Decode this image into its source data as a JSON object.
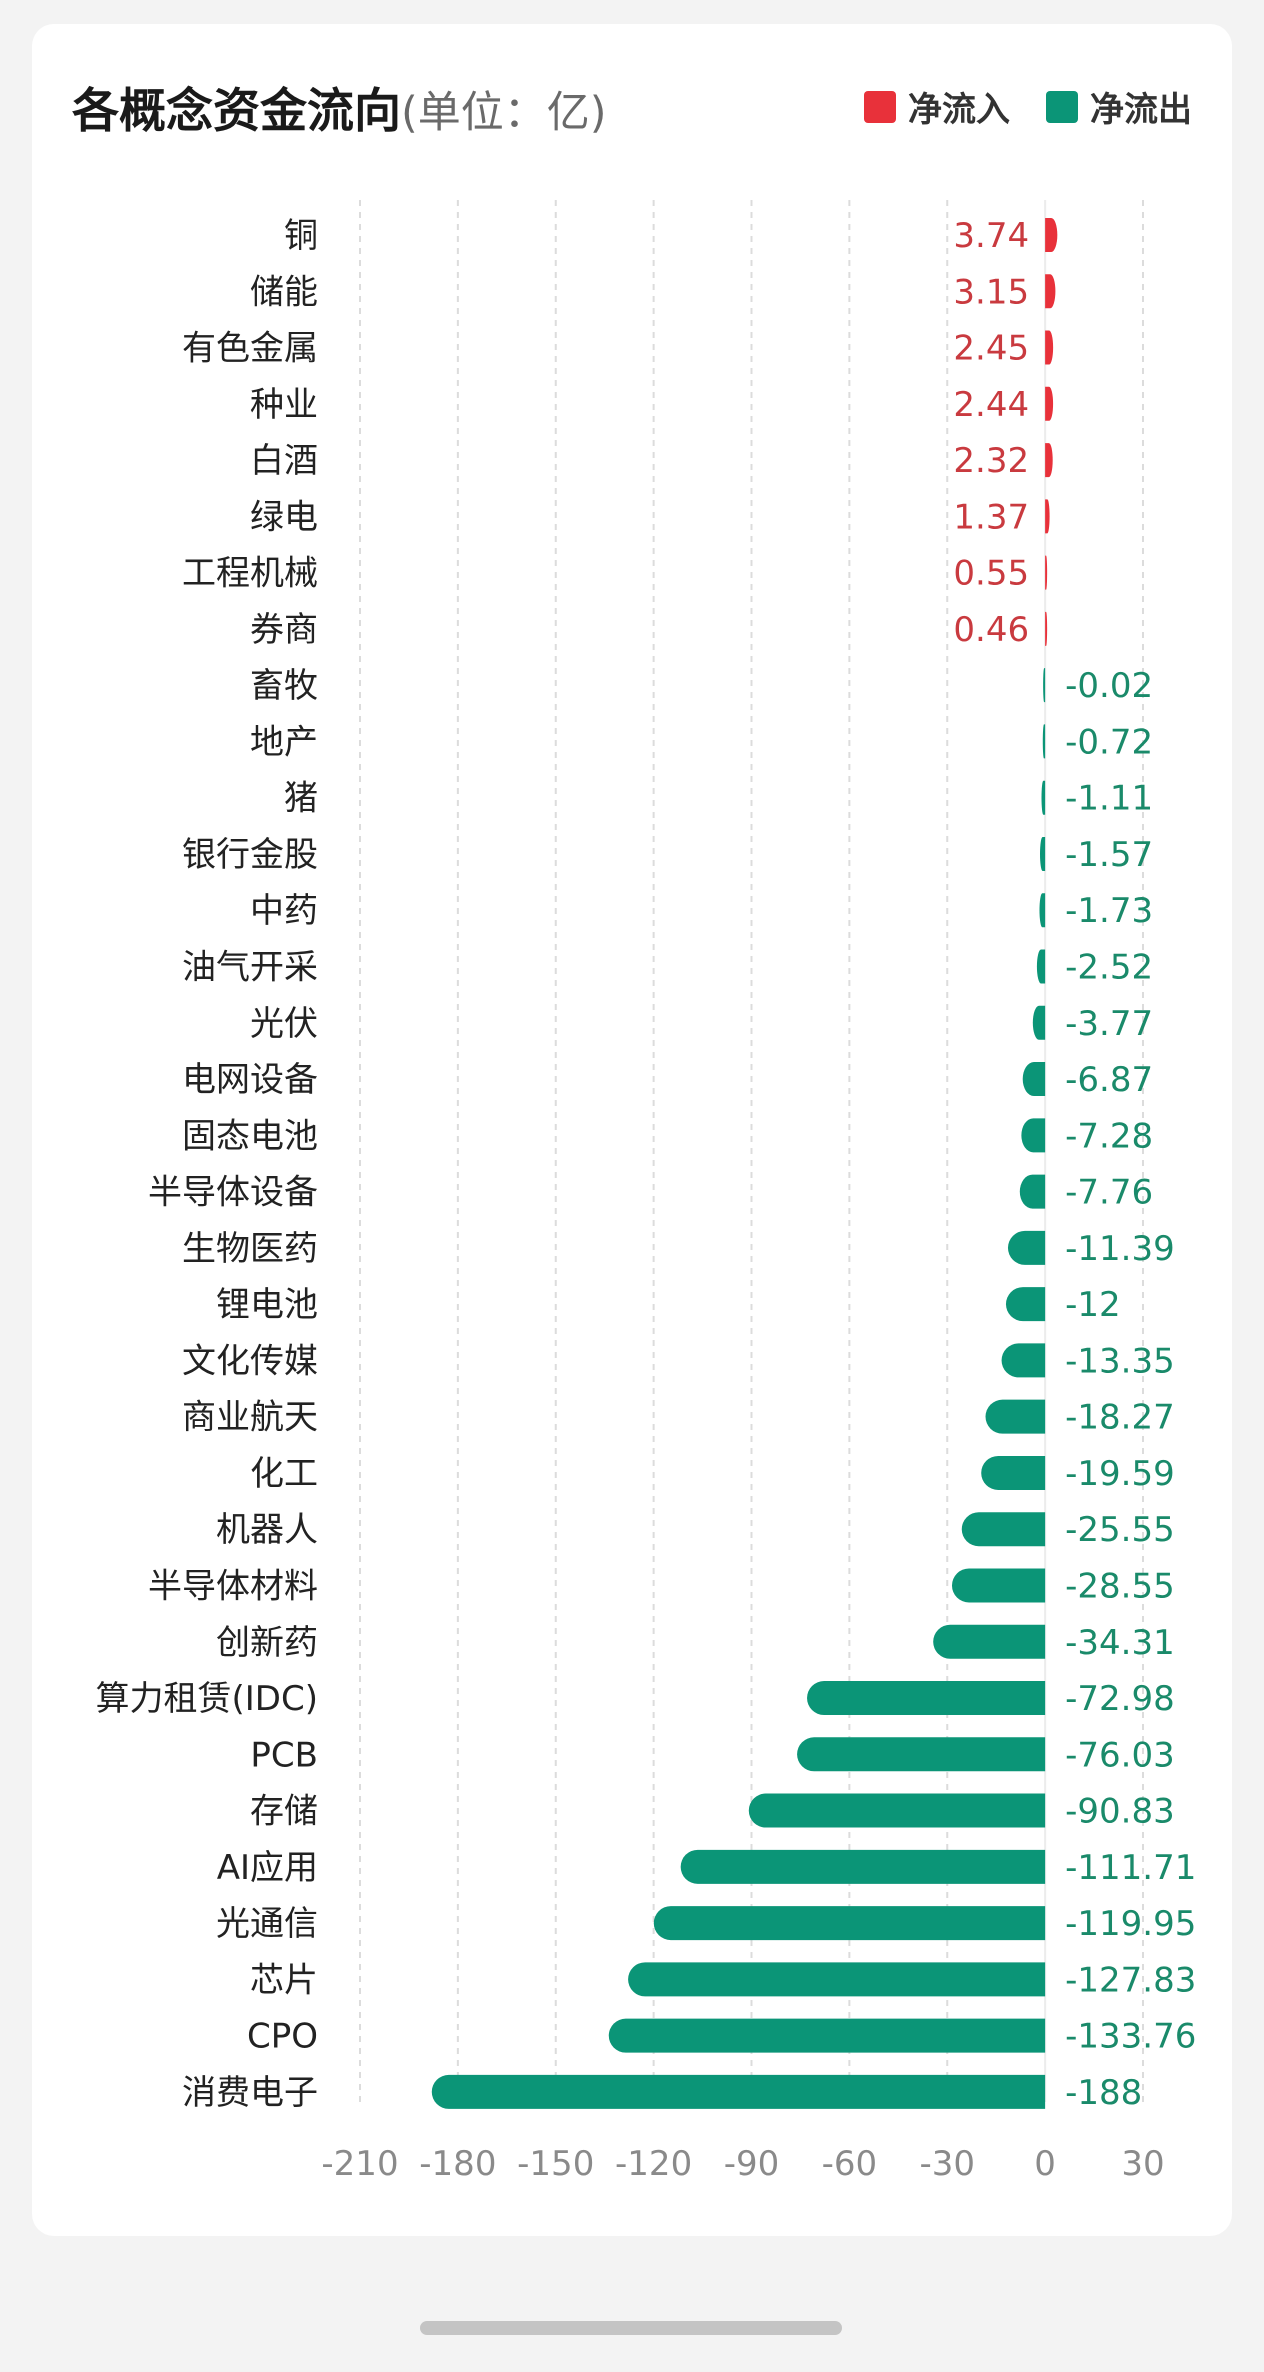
{
  "header": {
    "title": "各概念资金流向",
    "subtitle": "(单位：亿)",
    "legend": [
      {
        "label": "净流入",
        "color": "#e8313a"
      },
      {
        "label": "净流出",
        "color": "#0b9577"
      }
    ]
  },
  "chart_data": {
    "type": "bar",
    "orientation": "horizontal",
    "title": "各概念资金流向(单位：亿)",
    "categories": [
      "铜",
      "储能",
      "有色金属",
      "种业",
      "白酒",
      "绿电",
      "工程机械",
      "券商",
      "畜牧",
      "地产",
      "猪",
      "银行金股",
      "中药",
      "油气开采",
      "光伏",
      "电网设备",
      "固态电池",
      "半导体设备",
      "生物医药",
      "锂电池",
      "文化传媒",
      "商业航天",
      "化工",
      "机器人",
      "半导体材料",
      "创新药",
      "算力租赁(IDC)",
      "PCB",
      "存储",
      "AI应用",
      "光通信",
      "芯片",
      "CPO",
      "消费电子"
    ],
    "values": [
      3.74,
      3.15,
      2.45,
      2.44,
      2.32,
      1.37,
      0.55,
      0.46,
      -0.02,
      -0.72,
      -1.11,
      -1.57,
      -1.73,
      -2.52,
      -3.77,
      -6.87,
      -7.28,
      -7.76,
      -11.39,
      -12,
      -13.35,
      -18.27,
      -19.59,
      -25.55,
      -28.55,
      -34.31,
      -72.98,
      -76.03,
      -90.83,
      -111.71,
      -119.95,
      -127.83,
      -133.76,
      -188
    ],
    "x_ticks": [
      "-210",
      "-180",
      "-150",
      "-120",
      "-90",
      "-60",
      "-30",
      "0",
      "30"
    ],
    "xlim": [
      -210,
      30
    ],
    "grid": true,
    "legend_position": "top-right",
    "colors": {
      "positive": "#e8313a",
      "negative": "#0b9577",
      "positive_text": "#c93a3f",
      "negative_text": "#1a8a6a"
    }
  }
}
